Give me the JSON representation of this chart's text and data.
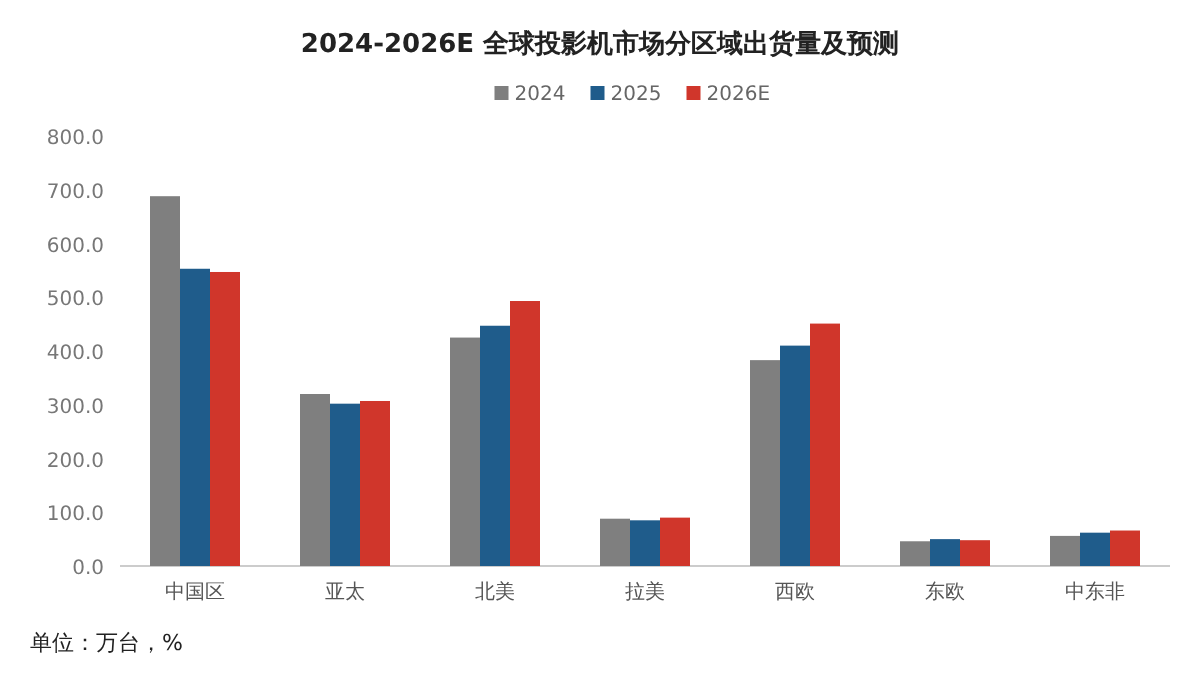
{
  "chart_data": {
    "type": "bar",
    "title": "2024-2026E 全球投影机市场分区域出货量及预测",
    "categories": [
      "中国区",
      "亚太",
      "北美",
      "拉美",
      "西欧",
      "东欧",
      "中东非"
    ],
    "series": [
      {
        "name": "2024",
        "color": "#7f7f7f",
        "values": [
          688,
          320,
          425,
          88,
          383,
          46,
          56
        ]
      },
      {
        "name": "2025",
        "color": "#1f5c8b",
        "values": [
          553,
          302,
          447,
          85,
          410,
          50,
          62
        ]
      },
      {
        "name": "2026E",
        "color": "#d0362b",
        "values": [
          547,
          307,
          493,
          90,
          451,
          48,
          66
        ]
      }
    ],
    "ylim": [
      0,
      800
    ],
    "yticks": [
      {
        "value": 0,
        "label": "0.0"
      },
      {
        "value": 100,
        "label": "100.0"
      },
      {
        "value": 200,
        "label": "200.0"
      },
      {
        "value": 300,
        "label": "300.0"
      },
      {
        "value": 400,
        "label": "400.0"
      },
      {
        "value": 500,
        "label": "500.0"
      },
      {
        "value": 600,
        "label": "600.0"
      },
      {
        "value": 700,
        "label": "700.0"
      },
      {
        "value": 800,
        "label": "800.0"
      }
    ],
    "grid": false,
    "legend": "top",
    "annotations": [
      "单位：万台，%"
    ]
  }
}
